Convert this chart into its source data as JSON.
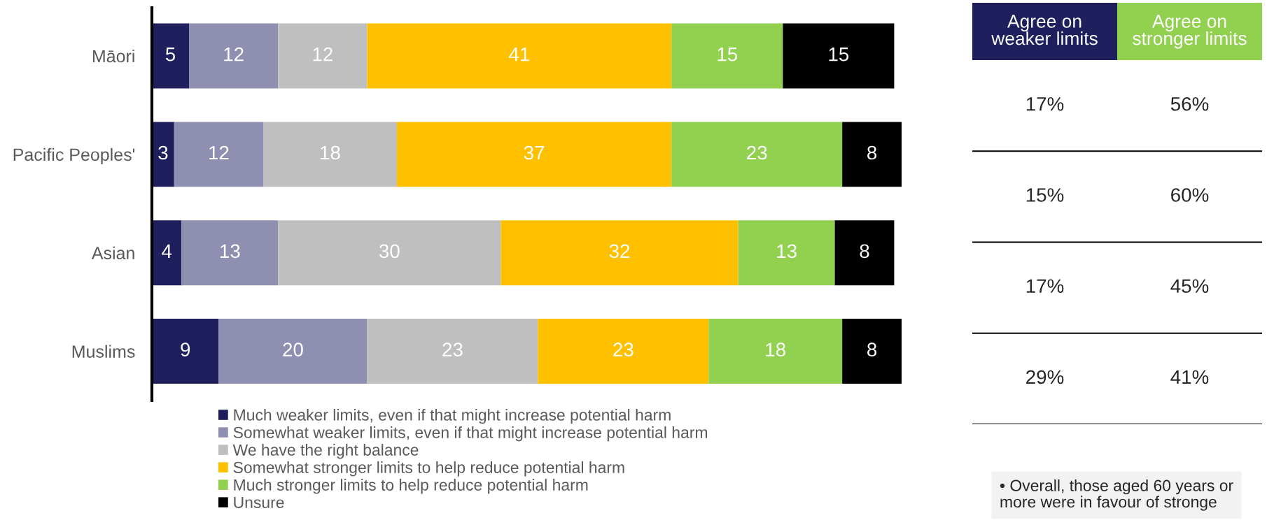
{
  "chart_data": [
    {
      "type": "bar",
      "orientation": "horizontal",
      "stacked": true,
      "categories": [
        "Māori",
        "Pacific Peoples'",
        "Asian",
        "Muslims"
      ],
      "series": [
        {
          "name": "Much weaker limits, even if that might increase potential harm",
          "color": "#201f5e",
          "values": [
            5,
            3,
            4,
            9
          ]
        },
        {
          "name": "Somewhat weaker limits, even if that might increase potential harm",
          "color": "#8f8fb1",
          "values": [
            12,
            12,
            13,
            20
          ]
        },
        {
          "name": "We have the right balance",
          "color": "#bfbfbf",
          "values": [
            12,
            18,
            30,
            23
          ]
        },
        {
          "name": "Somewhat stronger limits to help reduce potential harm",
          "color": "#ffc000",
          "values": [
            41,
            37,
            32,
            23
          ]
        },
        {
          "name": "Much stronger limits to help reduce potential harm",
          "color": "#92d050",
          "values": [
            15,
            23,
            13,
            18
          ]
        },
        {
          "name": "Unsure",
          "color": "#000000",
          "values": [
            15,
            8,
            8,
            8
          ]
        }
      ],
      "data_labels": true,
      "legend": "bottom",
      "tick_labels": "y"
    },
    {
      "type": "other",
      "categories": [
        "Agree on weaker limits",
        "Agree on stronger limits"
      ],
      "colors": [
        "#201f5e",
        "#92d050"
      ],
      "series": [
        {
          "values": [
            17,
            56
          ],
          "value_labels": [
            "17%",
            "56%"
          ]
        },
        {
          "values": [
            15,
            60
          ],
          "value_labels": [
            "15%",
            "60%"
          ]
        },
        {
          "values": [
            17,
            45
          ],
          "value_labels": [
            "17%",
            "45%"
          ]
        },
        {
          "values": [
            29,
            41
          ],
          "value_labels": [
            "29%",
            "41%"
          ]
        }
      ],
      "annotations": [
        "• Overall, those aged 60 years or more were in favour of stronge"
      ]
    }
  ]
}
